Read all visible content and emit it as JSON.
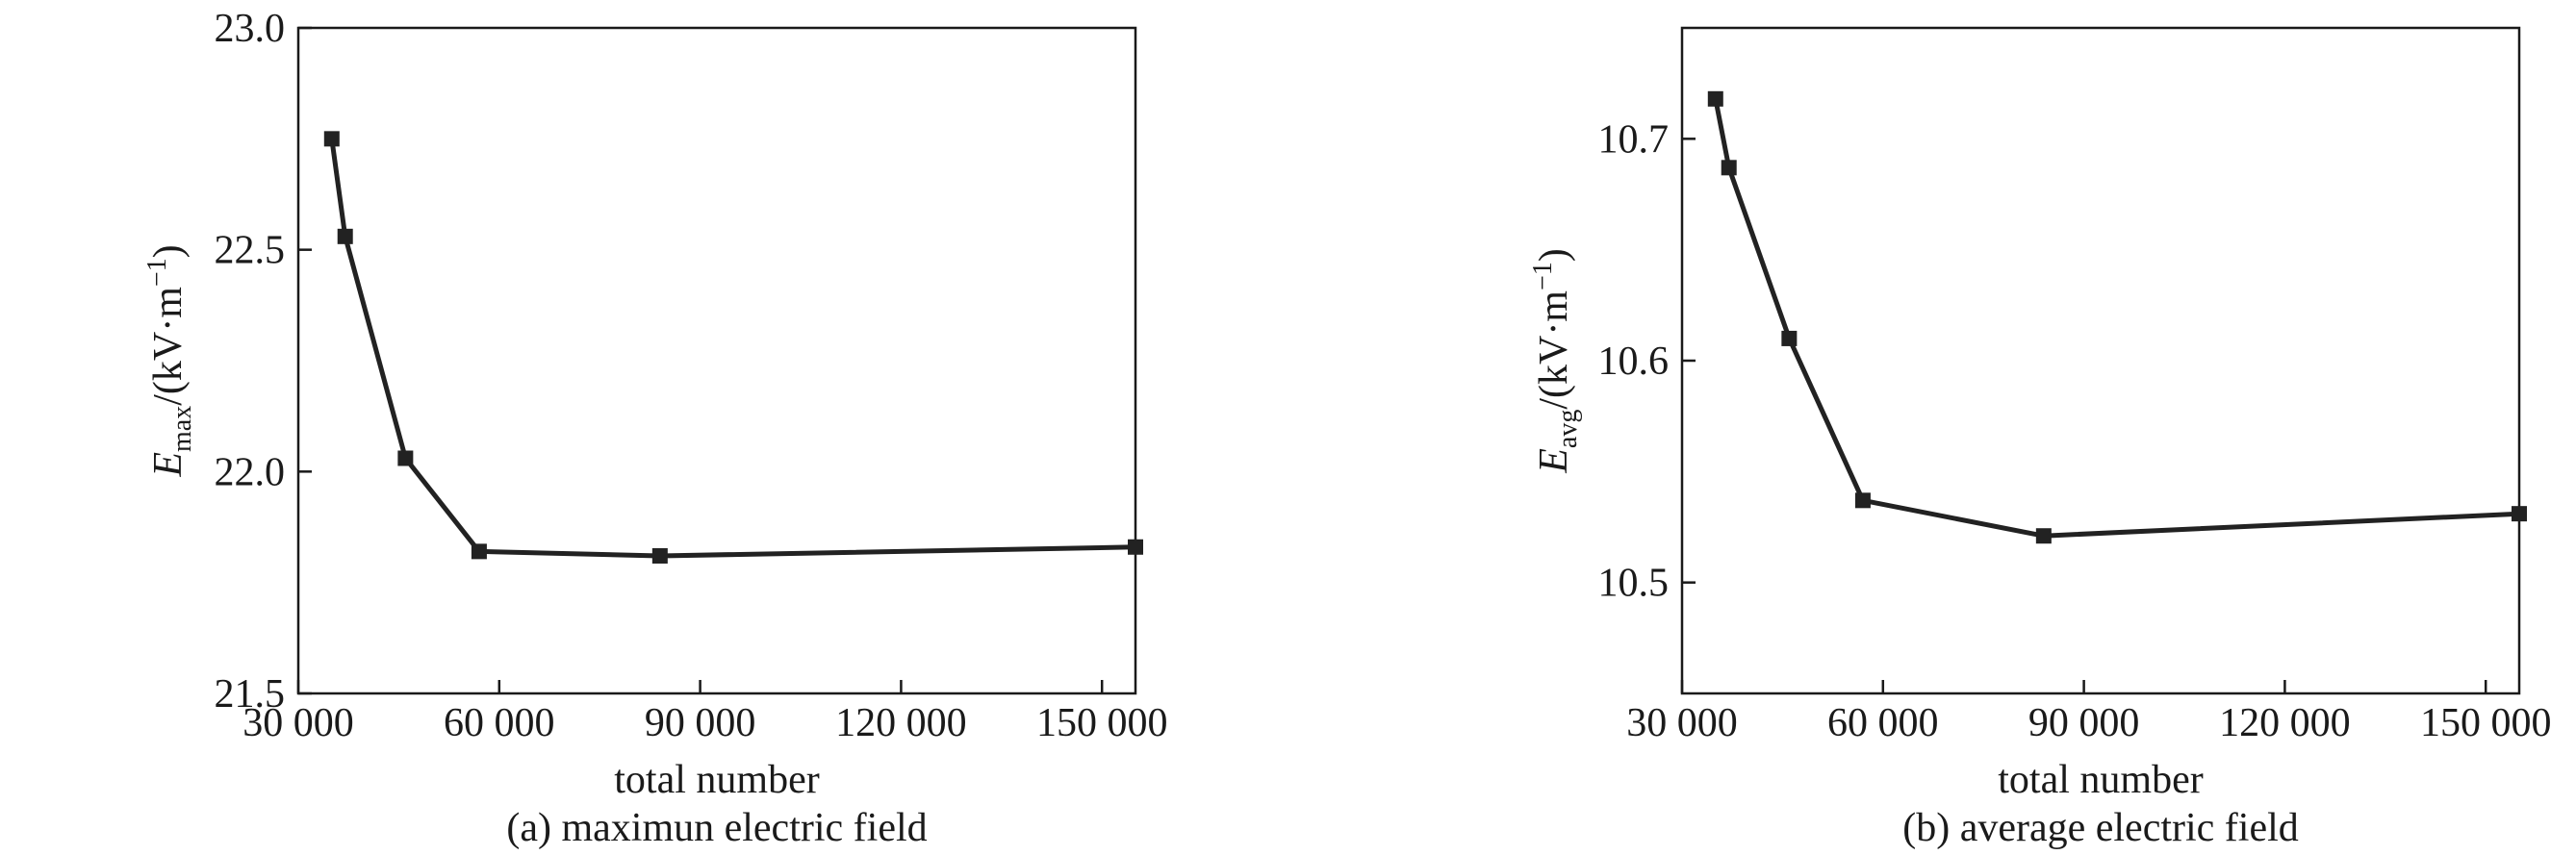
{
  "chart_data": [
    {
      "type": "line",
      "caption": "(a) maximun electric field",
      "xlabel": "total number",
      "ylabel_symbol": "E",
      "ylabel_subscript": "max",
      "ylabel_unit_base": "/(kV·m",
      "ylabel_unit_exp": "−1",
      "ylabel_unit_close": ")",
      "xlim": [
        30000,
        155000
      ],
      "ylim": [
        21.5,
        23.0
      ],
      "x_ticks": [
        30000,
        60000,
        90000,
        120000,
        150000
      ],
      "x_tick_labels": [
        "30 000",
        "60 000",
        "90 000",
        "120 000",
        "150 000"
      ],
      "y_ticks": [
        21.5,
        22.0,
        22.5,
        23.0
      ],
      "y_tick_labels": [
        "21.5",
        "22.0",
        "22.5",
        "23.0"
      ],
      "grid": false,
      "x": [
        35000,
        37000,
        46000,
        57000,
        84000,
        155000
      ],
      "y": [
        22.75,
        22.53,
        22.03,
        21.82,
        21.81,
        21.83
      ]
    },
    {
      "type": "line",
      "caption": "(b) average electric field",
      "xlabel": "total number",
      "ylabel_symbol": "E",
      "ylabel_subscript": "avg",
      "ylabel_unit_base": "/(kV·m",
      "ylabel_unit_exp": "−1",
      "ylabel_unit_close": ")",
      "xlim": [
        30000,
        155000
      ],
      "ylim": [
        10.45,
        10.75
      ],
      "x_ticks": [
        30000,
        60000,
        90000,
        120000,
        150000
      ],
      "x_tick_labels": [
        "30 000",
        "60 000",
        "90 000",
        "120 000",
        "150 000"
      ],
      "y_ticks": [
        10.5,
        10.6,
        10.7
      ],
      "y_tick_labels": [
        "10.5",
        "10.6",
        "10.7"
      ],
      "grid": false,
      "x": [
        35000,
        37000,
        46000,
        57000,
        84000,
        155000
      ],
      "y": [
        10.718,
        10.687,
        10.61,
        10.537,
        10.521,
        10.531
      ]
    }
  ]
}
